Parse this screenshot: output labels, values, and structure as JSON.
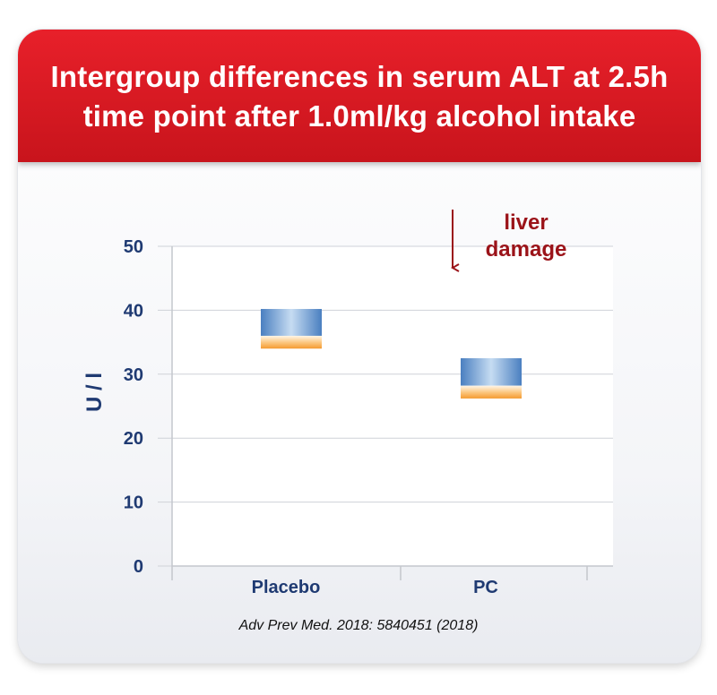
{
  "header": {
    "title": "Intergroup differences in serum ALT at 2.5h\ntime point after 1.0ml/kg alcohol intake"
  },
  "colors": {
    "header_red": "#d4161f",
    "axis_blue": "#1f3a72",
    "annotation_red": "#9b1319",
    "bar_blue": "#4f86c6",
    "bar_orange": "#f7a23f"
  },
  "chart_data": {
    "type": "bar",
    "title": "Intergroup differences in serum ALT at 2.5h time point after 1.0ml/kg alcohol intake",
    "xlabel": "",
    "ylabel": "U / l",
    "ylim": [
      0,
      50
    ],
    "yticks": [
      "0",
      "10",
      "20",
      "30",
      "40",
      "50"
    ],
    "categories": [
      "Placebo",
      "PC"
    ],
    "grid": true,
    "bars": [
      {
        "category": "Placebo",
        "low": 34.0,
        "split": 36.0,
        "high": 40.2
      },
      {
        "category": "PC",
        "low": 26.2,
        "split": 28.2,
        "high": 32.5
      }
    ],
    "annotation": {
      "text": [
        "liver",
        "damage"
      ],
      "arrow": "down"
    }
  },
  "citation": "Adv Prev Med. 2018: 5840451 (2018)"
}
